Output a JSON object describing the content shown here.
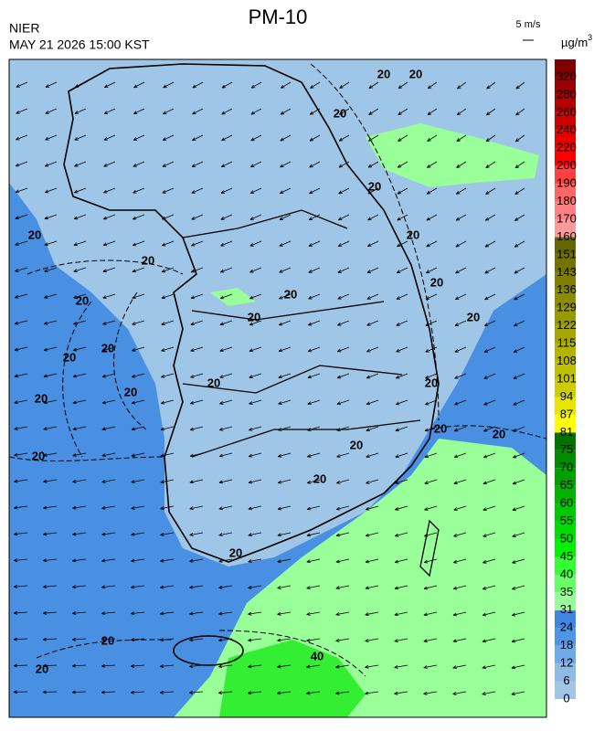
{
  "header": {
    "title": "PM-10",
    "source": "NIER",
    "time": "MAY 21 2026 15:00 KST",
    "wind_scale": "5 m/s",
    "unit": "µg/m",
    "unit_sup": "3"
  },
  "colorbar": {
    "labels": [
      0,
      6,
      12,
      18,
      24,
      31,
      35,
      40,
      45,
      50,
      55,
      60,
      65,
      70,
      75,
      81,
      87,
      94,
      101,
      108,
      115,
      122,
      129,
      136,
      143,
      151,
      160,
      170,
      180,
      190,
      200,
      220,
      240,
      260,
      280,
      320
    ],
    "colors": [
      "#9fc6e6",
      "#8dbbe6",
      "#6eaae8",
      "#4f95e6",
      "#3f86e2",
      "#99ff99",
      "#66ff66",
      "#33ff33",
      "#00f000",
      "#00dc00",
      "#00c800",
      "#00b400",
      "#00a000",
      "#008c00",
      "#007200",
      "#ffff00",
      "#e6e600",
      "#cccc00",
      "#c0c000",
      "#b3b300",
      "#a6a600",
      "#999900",
      "#8c8c00",
      "#808000",
      "#737300",
      "#666600",
      "#ff9a9a",
      "#ff8080",
      "#ff6666",
      "#ff4040",
      "#ff0000",
      "#e60000",
      "#cc0000",
      "#b30000",
      "#990000",
      "#800000"
    ]
  },
  "contours": [
    "20",
    "20",
    "20",
    "20",
    "20",
    "20",
    "20",
    "20",
    "20",
    "20",
    "20",
    "20",
    "20",
    "20",
    "20",
    "20",
    "20",
    "20",
    "20",
    "20",
    "20",
    "20",
    "20",
    "20",
    "20",
    "20",
    "40"
  ]
}
